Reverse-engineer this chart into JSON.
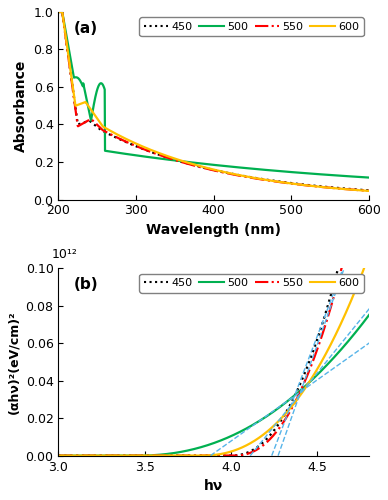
{
  "panel_a": {
    "title": "(a)",
    "xlabel": "Wavelength (nm)",
    "ylabel": "Absorbance",
    "xlim": [
      200,
      600
    ],
    "ylim": [
      0,
      1.0
    ],
    "yticks": [
      0,
      0.2,
      0.4,
      0.6,
      0.8,
      1.0
    ],
    "xticks": [
      200,
      300,
      400,
      500,
      600
    ],
    "series": {
      "450": {
        "color": "#000000",
        "linestyle": "dotted",
        "linewidth": 1.6
      },
      "500": {
        "color": "#00b050",
        "linestyle": "solid",
        "linewidth": 1.6
      },
      "550": {
        "color": "#ff0000",
        "linestyle": "dashdot",
        "linewidth": 1.6
      },
      "600": {
        "color": "#ffc000",
        "linestyle": "solid",
        "linewidth": 1.6
      }
    }
  },
  "panel_b": {
    "title": "(b)",
    "xlabel": "hν",
    "ylabel": "(αhν)²(eV/cm)²",
    "xlim": [
      3.0,
      4.8
    ],
    "ylim": [
      0,
      0.1
    ],
    "yticks": [
      0.0,
      0.02,
      0.04,
      0.06,
      0.08,
      0.1
    ],
    "xticks": [
      3.0,
      3.5,
      4.0,
      4.5
    ],
    "exponent_label": "10¹²",
    "series": {
      "450": {
        "color": "#000000",
        "linestyle": "dotted",
        "linewidth": 1.6
      },
      "500": {
        "color": "#00b050",
        "linestyle": "solid",
        "linewidth": 1.6
      },
      "550": {
        "color": "#ff0000",
        "linestyle": "dashdot",
        "linewidth": 1.6
      },
      "600": {
        "color": "#ffc000",
        "linestyle": "solid",
        "linewidth": 1.6
      }
    }
  },
  "legend": {
    "labels": [
      "450",
      "500",
      "550",
      "600"
    ],
    "colors": [
      "#000000",
      "#00b050",
      "#ff0000",
      "#ffc000"
    ],
    "linestyles": [
      "dotted",
      "solid",
      "dashdot",
      "solid"
    ]
  },
  "tangent_color": "#56b4e9",
  "tangent_ls": "--",
  "tangent_lw": 1.0
}
